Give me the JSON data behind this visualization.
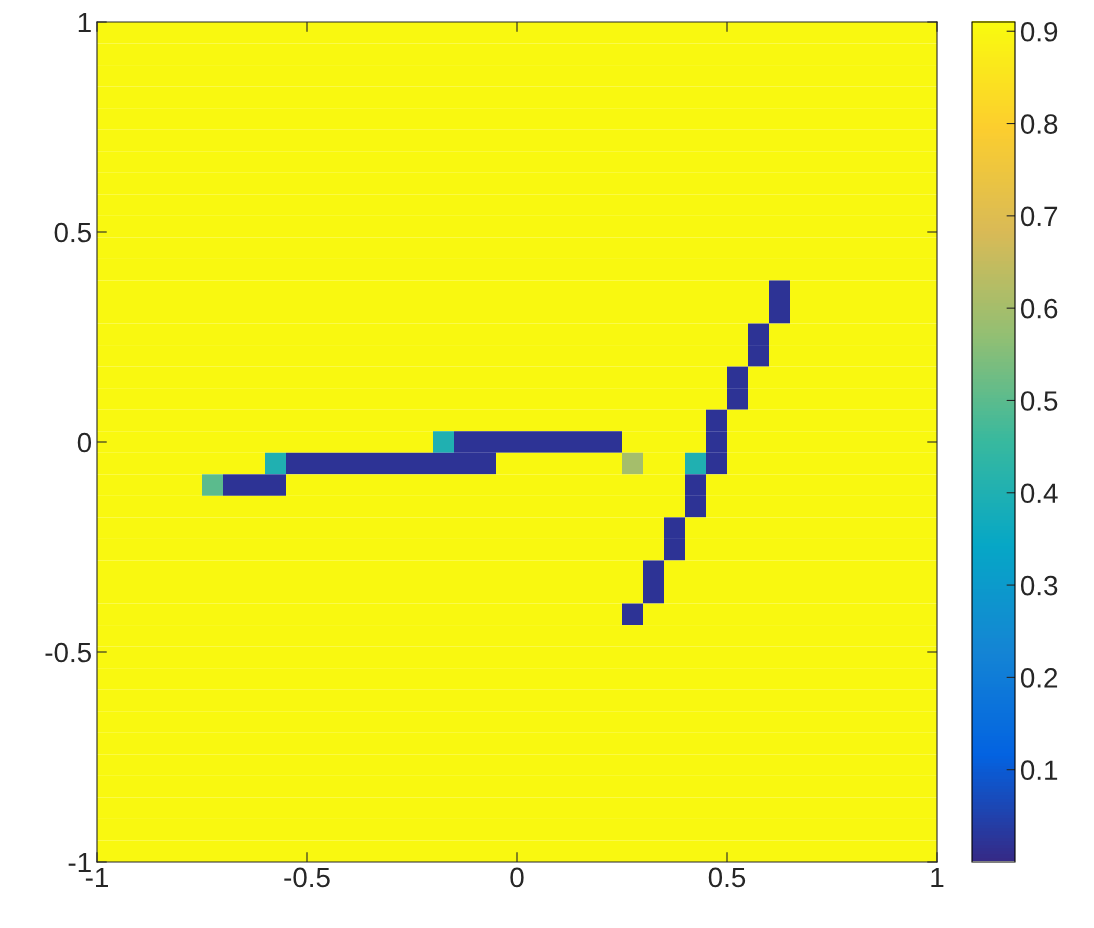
{
  "chart_data": {
    "type": "heatmap",
    "xlim": [
      -1,
      1
    ],
    "ylim": [
      -1,
      1
    ],
    "xticks": [
      -1,
      -0.5,
      0,
      0.5,
      1
    ],
    "yticks": [
      -1,
      -0.5,
      0,
      0.5,
      1
    ],
    "clim": [
      0,
      0.91
    ],
    "cticks": [
      0.1,
      0.2,
      0.3,
      0.4,
      0.5,
      0.6,
      0.7,
      0.8,
      0.9
    ],
    "grid": false,
    "cells": [
      [
        0.9,
        0.9,
        0.9,
        0.9,
        0.9,
        0.9,
        0.9,
        0.9,
        0.9,
        0.9,
        0.9,
        0.9,
        0.9,
        0.9,
        0.9,
        0.9,
        0.9,
        0.9,
        0.9,
        0.9,
        0.9,
        0.9,
        0.9,
        0.9,
        0.9,
        0.9,
        0.9,
        0.9,
        0.9,
        0.9,
        0.9,
        0.9,
        0.9,
        0.9,
        0.9,
        0.9,
        0.9,
        0.9,
        0.9,
        0.9
      ],
      [
        0.9,
        0.9,
        0.9,
        0.9,
        0.9,
        0.9,
        0.9,
        0.9,
        0.9,
        0.9,
        0.9,
        0.9,
        0.9,
        0.9,
        0.9,
        0.9,
        0.9,
        0.9,
        0.9,
        0.9,
        0.9,
        0.9,
        0.9,
        0.9,
        0.9,
        0.9,
        0.9,
        0.9,
        0.9,
        0.9,
        0.9,
        0.9,
        0.9,
        0.9,
        0.9,
        0.9,
        0.9,
        0.9,
        0.9,
        0.9
      ],
      [
        0.9,
        0.9,
        0.9,
        0.9,
        0.9,
        0.9,
        0.9,
        0.9,
        0.9,
        0.9,
        0.9,
        0.9,
        0.9,
        0.9,
        0.9,
        0.9,
        0.9,
        0.9,
        0.9,
        0.9,
        0.9,
        0.9,
        0.9,
        0.9,
        0.9,
        0.9,
        0.9,
        0.9,
        0.9,
        0.9,
        0.9,
        0.9,
        0.9,
        0.9,
        0.9,
        0.9,
        0.9,
        0.9,
        0.9,
        0.9
      ],
      [
        0.9,
        0.9,
        0.9,
        0.9,
        0.9,
        0.9,
        0.9,
        0.9,
        0.9,
        0.9,
        0.9,
        0.9,
        0.9,
        0.9,
        0.9,
        0.9,
        0.9,
        0.9,
        0.9,
        0.9,
        0.9,
        0.9,
        0.9,
        0.9,
        0.9,
        0.9,
        0.9,
        0.9,
        0.9,
        0.9,
        0.9,
        0.9,
        0.9,
        0.9,
        0.9,
        0.9,
        0.9,
        0.9,
        0.9,
        0.9
      ],
      [
        0.9,
        0.9,
        0.9,
        0.9,
        0.9,
        0.9,
        0.9,
        0.9,
        0.9,
        0.9,
        0.9,
        0.9,
        0.9,
        0.9,
        0.9,
        0.9,
        0.9,
        0.9,
        0.9,
        0.9,
        0.9,
        0.9,
        0.9,
        0.9,
        0.9,
        0.9,
        0.9,
        0.9,
        0.9,
        0.9,
        0.9,
        0.9,
        0.9,
        0.9,
        0.9,
        0.9,
        0.9,
        0.9,
        0.9,
        0.9
      ],
      [
        0.9,
        0.9,
        0.9,
        0.9,
        0.9,
        0.9,
        0.9,
        0.9,
        0.9,
        0.9,
        0.9,
        0.9,
        0.9,
        0.9,
        0.9,
        0.9,
        0.9,
        0.9,
        0.9,
        0.9,
        0.9,
        0.9,
        0.9,
        0.9,
        0.9,
        0.9,
        0.9,
        0.9,
        0.9,
        0.9,
        0.9,
        0.9,
        0.9,
        0.9,
        0.9,
        0.9,
        0.9,
        0.9,
        0.9,
        0.9
      ],
      [
        0.9,
        0.9,
        0.9,
        0.9,
        0.9,
        0.9,
        0.9,
        0.9,
        0.9,
        0.9,
        0.9,
        0.9,
        0.9,
        0.9,
        0.9,
        0.9,
        0.9,
        0.9,
        0.9,
        0.9,
        0.9,
        0.9,
        0.9,
        0.9,
        0.9,
        0.9,
        0.9,
        0.9,
        0.9,
        0.9,
        0.9,
        0.9,
        0.9,
        0.9,
        0.9,
        0.9,
        0.9,
        0.9,
        0.9,
        0.9
      ],
      [
        0.9,
        0.9,
        0.9,
        0.9,
        0.9,
        0.9,
        0.9,
        0.9,
        0.9,
        0.9,
        0.9,
        0.9,
        0.9,
        0.9,
        0.9,
        0.9,
        0.9,
        0.9,
        0.9,
        0.9,
        0.9,
        0.9,
        0.9,
        0.9,
        0.9,
        0.9,
        0.9,
        0.9,
        0.9,
        0.9,
        0.9,
        0.9,
        0.9,
        0.9,
        0.9,
        0.9,
        0.9,
        0.9,
        0.9,
        0.9
      ],
      [
        0.9,
        0.9,
        0.9,
        0.9,
        0.9,
        0.9,
        0.9,
        0.9,
        0.9,
        0.9,
        0.9,
        0.9,
        0.9,
        0.9,
        0.9,
        0.9,
        0.9,
        0.9,
        0.9,
        0.9,
        0.9,
        0.9,
        0.9,
        0.9,
        0.9,
        0.9,
        0.9,
        0.9,
        0.9,
        0.9,
        0.9,
        0.9,
        0.9,
        0.9,
        0.9,
        0.9,
        0.9,
        0.9,
        0.9,
        0.9
      ],
      [
        0.9,
        0.9,
        0.9,
        0.9,
        0.9,
        0.9,
        0.9,
        0.9,
        0.9,
        0.9,
        0.9,
        0.9,
        0.9,
        0.9,
        0.9,
        0.9,
        0.9,
        0.9,
        0.9,
        0.9,
        0.9,
        0.9,
        0.9,
        0.9,
        0.9,
        0.9,
        0.9,
        0.9,
        0.9,
        0.9,
        0.9,
        0.9,
        0.9,
        0.9,
        0.9,
        0.9,
        0.9,
        0.9,
        0.9,
        0.9
      ],
      [
        0.9,
        0.9,
        0.9,
        0.9,
        0.9,
        0.9,
        0.9,
        0.9,
        0.9,
        0.9,
        0.9,
        0.9,
        0.9,
        0.9,
        0.9,
        0.9,
        0.9,
        0.9,
        0.9,
        0.9,
        0.9,
        0.9,
        0.9,
        0.9,
        0.9,
        0.9,
        0.9,
        0.9,
        0.9,
        0.9,
        0.9,
        0.9,
        0.9,
        0.9,
        0.9,
        0.9,
        0.9,
        0.9,
        0.9,
        0.9
      ],
      [
        0.9,
        0.9,
        0.9,
        0.9,
        0.9,
        0.9,
        0.9,
        0.9,
        0.9,
        0.9,
        0.9,
        0.9,
        0.9,
        0.9,
        0.9,
        0.9,
        0.9,
        0.9,
        0.9,
        0.9,
        0.9,
        0.9,
        0.9,
        0.9,
        0.9,
        0.9,
        0.9,
        0.9,
        0.9,
        0.9,
        0.9,
        0.9,
        0.9,
        0.9,
        0.9,
        0.9,
        0.9,
        0.9,
        0.9,
        0.9
      ],
      [
        0.9,
        0.9,
        0.9,
        0.9,
        0.9,
        0.9,
        0.9,
        0.9,
        0.9,
        0.9,
        0.9,
        0.9,
        0.9,
        0.9,
        0.9,
        0.9,
        0.9,
        0.9,
        0.9,
        0.9,
        0.9,
        0.9,
        0.9,
        0.9,
        0.9,
        0.9,
        0.9,
        0.9,
        0.9,
        0.9,
        0.9,
        0.9,
        0.02,
        0.9,
        0.9,
        0.9,
        0.9,
        0.9,
        0.9,
        0.9
      ],
      [
        0.9,
        0.9,
        0.9,
        0.9,
        0.9,
        0.9,
        0.9,
        0.9,
        0.9,
        0.9,
        0.9,
        0.9,
        0.9,
        0.9,
        0.9,
        0.9,
        0.9,
        0.9,
        0.9,
        0.9,
        0.9,
        0.9,
        0.9,
        0.9,
        0.9,
        0.9,
        0.9,
        0.9,
        0.9,
        0.9,
        0.9,
        0.9,
        0.02,
        0.9,
        0.9,
        0.9,
        0.9,
        0.9,
        0.9,
        0.9
      ],
      [
        0.9,
        0.9,
        0.9,
        0.9,
        0.9,
        0.9,
        0.9,
        0.9,
        0.9,
        0.9,
        0.9,
        0.9,
        0.9,
        0.9,
        0.9,
        0.9,
        0.9,
        0.9,
        0.9,
        0.9,
        0.9,
        0.9,
        0.9,
        0.9,
        0.9,
        0.9,
        0.9,
        0.9,
        0.9,
        0.9,
        0.9,
        0.02,
        0.9,
        0.9,
        0.9,
        0.9,
        0.9,
        0.9,
        0.9,
        0.9
      ],
      [
        0.9,
        0.9,
        0.9,
        0.9,
        0.9,
        0.9,
        0.9,
        0.9,
        0.9,
        0.9,
        0.9,
        0.9,
        0.9,
        0.9,
        0.9,
        0.9,
        0.9,
        0.9,
        0.9,
        0.9,
        0.9,
        0.9,
        0.9,
        0.9,
        0.9,
        0.9,
        0.9,
        0.9,
        0.9,
        0.9,
        0.9,
        0.02,
        0.9,
        0.9,
        0.9,
        0.9,
        0.9,
        0.9,
        0.9,
        0.9
      ],
      [
        0.9,
        0.9,
        0.9,
        0.9,
        0.9,
        0.9,
        0.9,
        0.9,
        0.9,
        0.9,
        0.9,
        0.9,
        0.9,
        0.9,
        0.9,
        0.9,
        0.9,
        0.9,
        0.9,
        0.9,
        0.9,
        0.9,
        0.9,
        0.9,
        0.9,
        0.9,
        0.9,
        0.9,
        0.9,
        0.9,
        0.02,
        0.9,
        0.9,
        0.9,
        0.9,
        0.9,
        0.9,
        0.9,
        0.9,
        0.9
      ],
      [
        0.9,
        0.9,
        0.9,
        0.9,
        0.9,
        0.9,
        0.9,
        0.9,
        0.9,
        0.9,
        0.9,
        0.9,
        0.9,
        0.9,
        0.9,
        0.9,
        0.9,
        0.9,
        0.9,
        0.9,
        0.9,
        0.9,
        0.9,
        0.9,
        0.9,
        0.9,
        0.9,
        0.9,
        0.9,
        0.9,
        0.02,
        0.9,
        0.9,
        0.9,
        0.9,
        0.9,
        0.9,
        0.9,
        0.9,
        0.9
      ],
      [
        0.9,
        0.9,
        0.9,
        0.9,
        0.9,
        0.9,
        0.9,
        0.9,
        0.9,
        0.9,
        0.9,
        0.9,
        0.9,
        0.9,
        0.9,
        0.9,
        0.9,
        0.9,
        0.9,
        0.9,
        0.9,
        0.9,
        0.9,
        0.9,
        0.9,
        0.9,
        0.9,
        0.9,
        0.9,
        0.02,
        0.9,
        0.9,
        0.9,
        0.9,
        0.9,
        0.9,
        0.9,
        0.9,
        0.9,
        0.9
      ],
      [
        0.9,
        0.9,
        0.9,
        0.9,
        0.9,
        0.9,
        0.9,
        0.9,
        0.9,
        0.9,
        0.9,
        0.9,
        0.9,
        0.9,
        0.9,
        0.9,
        0.4,
        0.02,
        0.02,
        0.02,
        0.02,
        0.02,
        0.02,
        0.02,
        0.02,
        0.9,
        0.9,
        0.9,
        0.9,
        0.02,
        0.9,
        0.9,
        0.9,
        0.9,
        0.9,
        0.9,
        0.9,
        0.9,
        0.9,
        0.9
      ],
      [
        0.9,
        0.9,
        0.9,
        0.9,
        0.9,
        0.9,
        0.9,
        0.9,
        0.4,
        0.02,
        0.02,
        0.02,
        0.02,
        0.02,
        0.02,
        0.02,
        0.02,
        0.02,
        0.02,
        0.9,
        0.9,
        0.9,
        0.9,
        0.9,
        0.9,
        0.6,
        0.9,
        0.9,
        0.4,
        0.02,
        0.9,
        0.9,
        0.9,
        0.9,
        0.9,
        0.9,
        0.9,
        0.9,
        0.9,
        0.9
      ],
      [
        0.9,
        0.9,
        0.9,
        0.9,
        0.9,
        0.5,
        0.02,
        0.02,
        0.02,
        0.9,
        0.9,
        0.9,
        0.9,
        0.9,
        0.9,
        0.9,
        0.9,
        0.9,
        0.9,
        0.9,
        0.9,
        0.9,
        0.9,
        0.9,
        0.9,
        0.9,
        0.9,
        0.9,
        0.02,
        0.9,
        0.9,
        0.9,
        0.9,
        0.9,
        0.9,
        0.9,
        0.9,
        0.9,
        0.9,
        0.9
      ],
      [
        0.9,
        0.9,
        0.9,
        0.9,
        0.9,
        0.9,
        0.9,
        0.9,
        0.9,
        0.9,
        0.9,
        0.9,
        0.9,
        0.9,
        0.9,
        0.9,
        0.9,
        0.9,
        0.9,
        0.9,
        0.9,
        0.9,
        0.9,
        0.9,
        0.9,
        0.9,
        0.9,
        0.9,
        0.02,
        0.9,
        0.9,
        0.9,
        0.9,
        0.9,
        0.9,
        0.9,
        0.9,
        0.9,
        0.9,
        0.9
      ],
      [
        0.9,
        0.9,
        0.9,
        0.9,
        0.9,
        0.9,
        0.9,
        0.9,
        0.9,
        0.9,
        0.9,
        0.9,
        0.9,
        0.9,
        0.9,
        0.9,
        0.9,
        0.9,
        0.9,
        0.9,
        0.9,
        0.9,
        0.9,
        0.9,
        0.9,
        0.9,
        0.9,
        0.02,
        0.9,
        0.9,
        0.9,
        0.9,
        0.9,
        0.9,
        0.9,
        0.9,
        0.9,
        0.9,
        0.9,
        0.9
      ],
      [
        0.9,
        0.9,
        0.9,
        0.9,
        0.9,
        0.9,
        0.9,
        0.9,
        0.9,
        0.9,
        0.9,
        0.9,
        0.9,
        0.9,
        0.9,
        0.9,
        0.9,
        0.9,
        0.9,
        0.9,
        0.9,
        0.9,
        0.9,
        0.9,
        0.9,
        0.9,
        0.9,
        0.02,
        0.9,
        0.9,
        0.9,
        0.9,
        0.9,
        0.9,
        0.9,
        0.9,
        0.9,
        0.9,
        0.9,
        0.9
      ],
      [
        0.9,
        0.9,
        0.9,
        0.9,
        0.9,
        0.9,
        0.9,
        0.9,
        0.9,
        0.9,
        0.9,
        0.9,
        0.9,
        0.9,
        0.9,
        0.9,
        0.9,
        0.9,
        0.9,
        0.9,
        0.9,
        0.9,
        0.9,
        0.9,
        0.9,
        0.9,
        0.02,
        0.9,
        0.9,
        0.9,
        0.9,
        0.9,
        0.9,
        0.9,
        0.9,
        0.9,
        0.9,
        0.9,
        0.9,
        0.9
      ],
      [
        0.9,
        0.9,
        0.9,
        0.9,
        0.9,
        0.9,
        0.9,
        0.9,
        0.9,
        0.9,
        0.9,
        0.9,
        0.9,
        0.9,
        0.9,
        0.9,
        0.9,
        0.9,
        0.9,
        0.9,
        0.9,
        0.9,
        0.9,
        0.9,
        0.9,
        0.9,
        0.02,
        0.9,
        0.9,
        0.9,
        0.9,
        0.9,
        0.9,
        0.9,
        0.9,
        0.9,
        0.9,
        0.9,
        0.9,
        0.9
      ],
      [
        0.9,
        0.9,
        0.9,
        0.9,
        0.9,
        0.9,
        0.9,
        0.9,
        0.9,
        0.9,
        0.9,
        0.9,
        0.9,
        0.9,
        0.9,
        0.9,
        0.9,
        0.9,
        0.9,
        0.9,
        0.9,
        0.9,
        0.9,
        0.9,
        0.9,
        0.02,
        0.9,
        0.9,
        0.9,
        0.9,
        0.9,
        0.9,
        0.9,
        0.9,
        0.9,
        0.9,
        0.9,
        0.9,
        0.9,
        0.9
      ],
      [
        0.9,
        0.9,
        0.9,
        0.9,
        0.9,
        0.9,
        0.9,
        0.9,
        0.9,
        0.9,
        0.9,
        0.9,
        0.9,
        0.9,
        0.9,
        0.9,
        0.9,
        0.9,
        0.9,
        0.9,
        0.9,
        0.9,
        0.9,
        0.9,
        0.9,
        0.9,
        0.9,
        0.9,
        0.9,
        0.9,
        0.9,
        0.9,
        0.9,
        0.9,
        0.9,
        0.9,
        0.9,
        0.9,
        0.9,
        0.9
      ],
      [
        0.9,
        0.9,
        0.9,
        0.9,
        0.9,
        0.9,
        0.9,
        0.9,
        0.9,
        0.9,
        0.9,
        0.9,
        0.9,
        0.9,
        0.9,
        0.9,
        0.9,
        0.9,
        0.9,
        0.9,
        0.9,
        0.9,
        0.9,
        0.9,
        0.9,
        0.9,
        0.9,
        0.9,
        0.9,
        0.9,
        0.9,
        0.9,
        0.9,
        0.9,
        0.9,
        0.9,
        0.9,
        0.9,
        0.9,
        0.9
      ],
      [
        0.9,
        0.9,
        0.9,
        0.9,
        0.9,
        0.9,
        0.9,
        0.9,
        0.9,
        0.9,
        0.9,
        0.9,
        0.9,
        0.9,
        0.9,
        0.9,
        0.9,
        0.9,
        0.9,
        0.9,
        0.9,
        0.9,
        0.9,
        0.9,
        0.9,
        0.9,
        0.9,
        0.9,
        0.9,
        0.9,
        0.9,
        0.9,
        0.9,
        0.9,
        0.9,
        0.9,
        0.9,
        0.9,
        0.9,
        0.9
      ],
      [
        0.9,
        0.9,
        0.9,
        0.9,
        0.9,
        0.9,
        0.9,
        0.9,
        0.9,
        0.9,
        0.9,
        0.9,
        0.9,
        0.9,
        0.9,
        0.9,
        0.9,
        0.9,
        0.9,
        0.9,
        0.9,
        0.9,
        0.9,
        0.9,
        0.9,
        0.9,
        0.9,
        0.9,
        0.9,
        0.9,
        0.9,
        0.9,
        0.9,
        0.9,
        0.9,
        0.9,
        0.9,
        0.9,
        0.9,
        0.9
      ],
      [
        0.9,
        0.9,
        0.9,
        0.9,
        0.9,
        0.9,
        0.9,
        0.9,
        0.9,
        0.9,
        0.9,
        0.9,
        0.9,
        0.9,
        0.9,
        0.9,
        0.9,
        0.9,
        0.9,
        0.9,
        0.9,
        0.9,
        0.9,
        0.9,
        0.9,
        0.9,
        0.9,
        0.9,
        0.9,
        0.9,
        0.9,
        0.9,
        0.9,
        0.9,
        0.9,
        0.9,
        0.9,
        0.9,
        0.9,
        0.9
      ],
      [
        0.9,
        0.9,
        0.9,
        0.9,
        0.9,
        0.9,
        0.9,
        0.9,
        0.9,
        0.9,
        0.9,
        0.9,
        0.9,
        0.9,
        0.9,
        0.9,
        0.9,
        0.9,
        0.9,
        0.9,
        0.9,
        0.9,
        0.9,
        0.9,
        0.9,
        0.9,
        0.9,
        0.9,
        0.9,
        0.9,
        0.9,
        0.9,
        0.9,
        0.9,
        0.9,
        0.9,
        0.9,
        0.9,
        0.9,
        0.9
      ],
      [
        0.9,
        0.9,
        0.9,
        0.9,
        0.9,
        0.9,
        0.9,
        0.9,
        0.9,
        0.9,
        0.9,
        0.9,
        0.9,
        0.9,
        0.9,
        0.9,
        0.9,
        0.9,
        0.9,
        0.9,
        0.9,
        0.9,
        0.9,
        0.9,
        0.9,
        0.9,
        0.9,
        0.9,
        0.9,
        0.9,
        0.9,
        0.9,
        0.9,
        0.9,
        0.9,
        0.9,
        0.9,
        0.9,
        0.9,
        0.9
      ],
      [
        0.9,
        0.9,
        0.9,
        0.9,
        0.9,
        0.9,
        0.9,
        0.9,
        0.9,
        0.9,
        0.9,
        0.9,
        0.9,
        0.9,
        0.9,
        0.9,
        0.9,
        0.9,
        0.9,
        0.9,
        0.9,
        0.9,
        0.9,
        0.9,
        0.9,
        0.9,
        0.9,
        0.9,
        0.9,
        0.9,
        0.9,
        0.9,
        0.9,
        0.9,
        0.9,
        0.9,
        0.9,
        0.9,
        0.9,
        0.9
      ],
      [
        0.9,
        0.9,
        0.9,
        0.9,
        0.9,
        0.9,
        0.9,
        0.9,
        0.9,
        0.9,
        0.9,
        0.9,
        0.9,
        0.9,
        0.9,
        0.9,
        0.9,
        0.9,
        0.9,
        0.9,
        0.9,
        0.9,
        0.9,
        0.9,
        0.9,
        0.9,
        0.9,
        0.9,
        0.9,
        0.9,
        0.9,
        0.9,
        0.9,
        0.9,
        0.9,
        0.9,
        0.9,
        0.9,
        0.9,
        0.9
      ],
      [
        0.9,
        0.9,
        0.9,
        0.9,
        0.9,
        0.9,
        0.9,
        0.9,
        0.9,
        0.9,
        0.9,
        0.9,
        0.9,
        0.9,
        0.9,
        0.9,
        0.9,
        0.9,
        0.9,
        0.9,
        0.9,
        0.9,
        0.9,
        0.9,
        0.9,
        0.9,
        0.9,
        0.9,
        0.9,
        0.9,
        0.9,
        0.9,
        0.9,
        0.9,
        0.9,
        0.9,
        0.9,
        0.9,
        0.9,
        0.9
      ],
      [
        0.9,
        0.9,
        0.9,
        0.9,
        0.9,
        0.9,
        0.9,
        0.9,
        0.9,
        0.9,
        0.9,
        0.9,
        0.9,
        0.9,
        0.9,
        0.9,
        0.9,
        0.9,
        0.9,
        0.9,
        0.9,
        0.9,
        0.9,
        0.9,
        0.9,
        0.9,
        0.9,
        0.9,
        0.9,
        0.9,
        0.9,
        0.9,
        0.9,
        0.9,
        0.9,
        0.9,
        0.9,
        0.9,
        0.9,
        0.9
      ]
    ]
  }
}
